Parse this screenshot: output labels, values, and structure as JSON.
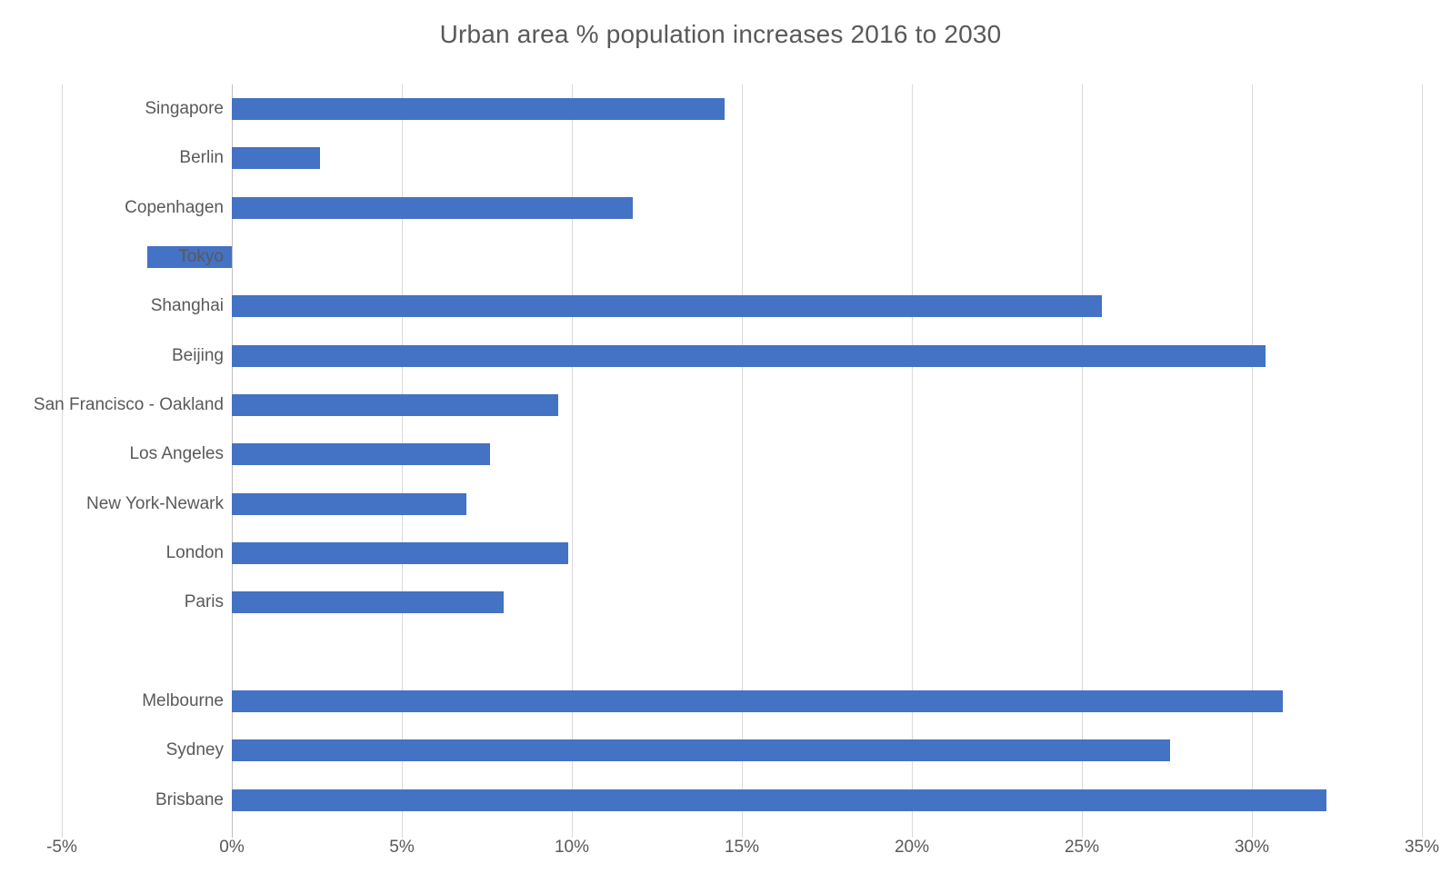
{
  "chart_data": {
    "type": "bar",
    "orientation": "horizontal",
    "title": "Urban area % population increases 2016 to 2030",
    "categories": [
      "Singapore",
      "Berlin",
      "Copenhagen",
      "Tokyo",
      "Shanghai",
      "Beijing",
      "San Francisco - Oakland",
      "Los Angeles",
      "New York-Newark",
      "London",
      "Paris",
      "",
      "Melbourne",
      "Sydney",
      "Brisbane"
    ],
    "values": [
      14.5,
      2.6,
      11.8,
      -2.5,
      25.6,
      30.4,
      9.6,
      7.6,
      6.9,
      9.9,
      8.0,
      null,
      30.9,
      27.6,
      32.2
    ],
    "xlabel": "",
    "ylabel": "",
    "xlim": [
      -5,
      35
    ],
    "x_tick_step": 5,
    "x_tick_labels": [
      "-5%",
      "0%",
      "5%",
      "10%",
      "15%",
      "20%",
      "25%",
      "30%",
      "35%"
    ],
    "grid": true,
    "legend": false,
    "colors": {
      "bar": "#4472C4",
      "gridline": "#D9D9D9",
      "axis_line": "#BFBFBF",
      "text": "#595959",
      "background": "#FFFFFF"
    }
  }
}
